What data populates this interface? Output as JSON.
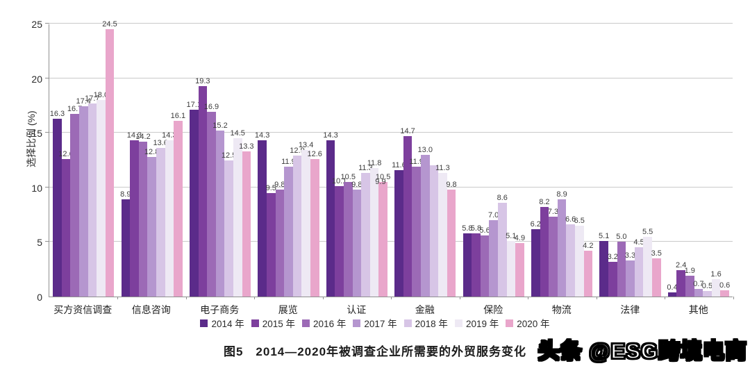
{
  "chart_data": {
    "type": "bar",
    "title": "图5　2014—2020年被调查企业所需要的外贸服务变化",
    "ylabel": "选择比例 (%)",
    "ylim": [
      0,
      25
    ],
    "y_ticks": [
      0,
      5,
      10,
      15,
      20,
      25
    ],
    "grid": true,
    "legend_position": "bottom",
    "categories": [
      "买方资信调查",
      "信息咨询",
      "电子商务",
      "展览",
      "认证",
      "金融",
      "保险",
      "物流",
      "法律",
      "其他"
    ],
    "series": [
      {
        "name": "2014 年",
        "color": "#5b2b8a",
        "values": [
          16.3,
          8.9,
          17.1,
          14.3,
          14.3,
          11.6,
          5.8,
          6.2,
          5.1,
          0.4
        ]
      },
      {
        "name": "2015 年",
        "color": "#7d3f9d",
        "values": [
          12.6,
          14.3,
          19.3,
          9.5,
          10.1,
          14.7,
          5.8,
          8.2,
          3.2,
          2.4
        ]
      },
      {
        "name": "2016 年",
        "color": "#9c6ab6",
        "values": [
          16.7,
          14.2,
          16.9,
          9.8,
          10.5,
          11.9,
          5.6,
          7.3,
          5.0,
          1.9
        ]
      },
      {
        "name": "2017 年",
        "color": "#b596cf",
        "values": [
          17.4,
          12.8,
          15.2,
          11.9,
          9.8,
          13.0,
          7.0,
          8.9,
          3.3,
          0.7
        ]
      },
      {
        "name": "2018 年",
        "color": "#d7c5e6",
        "values": [
          17.7,
          13.6,
          12.5,
          12.9,
          11.3,
          12.0,
          8.6,
          6.6,
          4.5,
          0.5
        ]
      },
      {
        "name": "2019 年",
        "color": "#eee9f4",
        "values": [
          18.0,
          14.3,
          14.5,
          13.4,
          11.8,
          11.3,
          5.1,
          6.5,
          5.5,
          1.6
        ]
      },
      {
        "name": "2020 年",
        "color": "#e9a6cb",
        "values": [
          24.5,
          16.1,
          13.3,
          12.6,
          10.5,
          9.8,
          4.9,
          4.2,
          3.5,
          0.6
        ]
      }
    ],
    "unlabeled_points": [
      {
        "series": 4,
        "category": 5
      }
    ],
    "extra_labels": [
      {
        "text": "9.9",
        "category": 4,
        "near_series": 6,
        "bottom_units": 10.1,
        "note": "stray duplicate label printed beside 2020 bar of 认证"
      }
    ]
  },
  "watermark": {
    "text": "头条 @ESG跨境电商"
  },
  "colors": {
    "background": "#ffffff",
    "gridline": "#c9c9c9",
    "axis": "#8f8f8f",
    "label_text": "#3c3c3c"
  }
}
